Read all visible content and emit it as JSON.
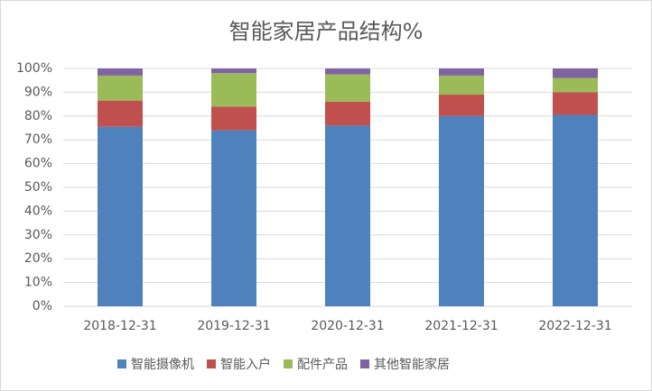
{
  "chart_data": {
    "type": "stacked_bar",
    "title": "智能家居产品结构%",
    "categories": [
      "2018-12-31",
      "2019-12-31",
      "2020-12-31",
      "2021-12-31",
      "2022-12-31"
    ],
    "series": [
      {
        "name": "智能摄像机",
        "color": "#4f81bd",
        "values": [
          75.5,
          74,
          76,
          80,
          80.5
        ]
      },
      {
        "name": "智能入户",
        "color": "#c0504d",
        "values": [
          11,
          10,
          10,
          9,
          9.5
        ]
      },
      {
        "name": "配件产品",
        "color": "#9bbb59",
        "values": [
          10.5,
          14,
          11.5,
          8,
          6
        ]
      },
      {
        "name": "其他智能家居",
        "color": "#8064a2",
        "values": [
          3,
          2,
          2.5,
          3,
          4
        ]
      }
    ],
    "ylim": [
      0,
      100
    ],
    "yticks": [
      {
        "value": 0,
        "label": "0%"
      },
      {
        "value": 10,
        "label": "10%"
      },
      {
        "value": 20,
        "label": "20%"
      },
      {
        "value": 30,
        "label": "30%"
      },
      {
        "value": 40,
        "label": "40%"
      },
      {
        "value": 50,
        "label": "50%"
      },
      {
        "value": 60,
        "label": "60%"
      },
      {
        "value": 70,
        "label": "70%"
      },
      {
        "value": 80,
        "label": "80%"
      },
      {
        "value": 90,
        "label": "90%"
      },
      {
        "value": 100,
        "label": "100%"
      }
    ],
    "grid": true,
    "legend": "bottom"
  }
}
